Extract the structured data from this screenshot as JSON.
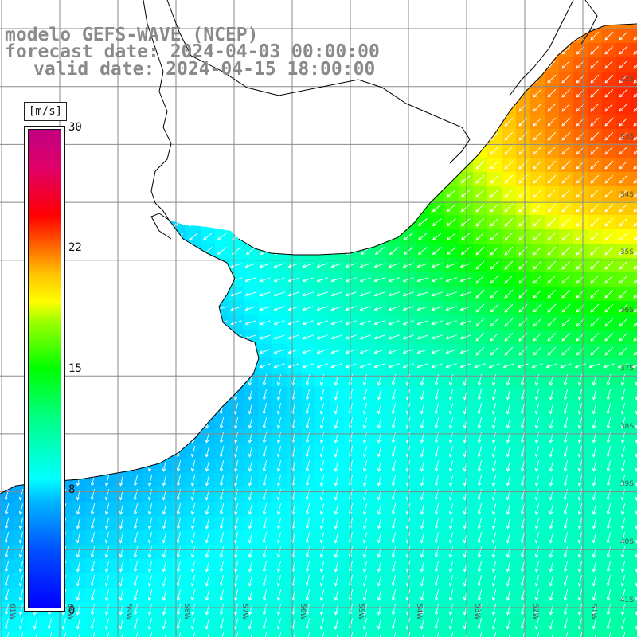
{
  "title": {
    "line1": "modelo GEFS-WAVE (NCEP)",
    "line2": "forecast date: 2024-04-03 00:00:00",
    "line3": "valid date: 2024-04-15 18:00:00"
  },
  "colorbar": {
    "unit": "[m/s]",
    "labels": [
      "30",
      "22",
      "15",
      "8",
      "0"
    ],
    "range": [
      0,
      30
    ],
    "colors": [
      "#0000ff",
      "#00b4ff",
      "#00ffff",
      "#00ff00",
      "#ffff00",
      "#ff0000",
      "#c00080"
    ]
  },
  "lat_labels": [
    "32S",
    "33S",
    "34S",
    "35S",
    "36S",
    "37S",
    "38S",
    "39S",
    "40S",
    "41S"
  ],
  "lon_labels": [
    "61W",
    "60W",
    "59W",
    "58W",
    "57W",
    "56W",
    "55W",
    "54W",
    "53W",
    "52W",
    "51W"
  ],
  "land_color": "#ffffff",
  "coast_color": "#000000",
  "grid_color": "#888888",
  "arrow_color": "#ffffff"
}
